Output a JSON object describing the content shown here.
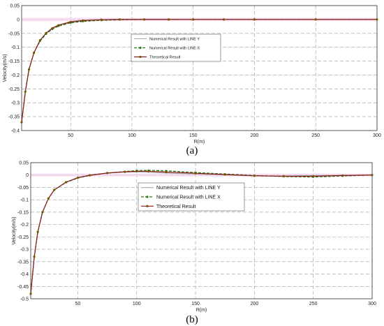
{
  "chart_data": [
    {
      "type": "line",
      "panel_label": "(a)",
      "xlabel": "R(m)",
      "ylabel": "Velocity(m/s)",
      "xlim": [
        10,
        300
      ],
      "ylim": [
        -0.4,
        0.05
      ],
      "xticks": [
        "50",
        "100",
        "150",
        "200",
        "250",
        "300"
      ],
      "yticks": [
        "0.05",
        "0",
        "-0.05",
        "-0.1",
        "-0.15",
        "-0.2",
        "-0.25",
        "-0.3",
        "-0.35",
        "-0.4"
      ],
      "grid": true,
      "legend_position": "center",
      "colors": {
        "line_y": "#a8a8a8",
        "line_x": "#2a7a1a",
        "theory": "#8b1a1a",
        "marker": "#6a5a00"
      },
      "series": [
        {
          "name": "Numerical Result with LINE Y",
          "x": [
            10,
            13,
            16,
            20,
            25,
            30,
            35,
            40,
            50,
            60,
            75,
            90,
            110,
            130,
            150,
            175,
            200,
            250,
            300
          ],
          "y": [
            -0.37,
            -0.26,
            -0.18,
            -0.12,
            -0.075,
            -0.048,
            -0.03,
            -0.02,
            -0.007,
            -0.002,
            0.0,
            0.001,
            0.001,
            0.001,
            0.0,
            0.0,
            0.0,
            0.0,
            0.0
          ]
        },
        {
          "name": "Numerical Result with LINE X",
          "x": [
            10,
            13,
            16,
            20,
            25,
            30,
            35,
            40,
            50,
            60,
            75,
            90,
            110,
            130,
            150,
            175,
            200,
            250,
            300
          ],
          "y": [
            -0.37,
            -0.26,
            -0.18,
            -0.12,
            -0.078,
            -0.052,
            -0.035,
            -0.024,
            -0.012,
            -0.007,
            -0.003,
            -0.001,
            0.0,
            0.0,
            0.0,
            0.0,
            0.0,
            0.0,
            0.0
          ]
        },
        {
          "name": "Theoretical Result",
          "x": [
            10,
            13,
            16,
            20,
            25,
            30,
            35,
            40,
            50,
            60,
            75,
            90,
            110,
            130,
            150,
            175,
            200,
            250,
            300
          ],
          "y": [
            -0.37,
            -0.26,
            -0.18,
            -0.12,
            -0.075,
            -0.049,
            -0.032,
            -0.021,
            -0.009,
            -0.004,
            -0.001,
            0.0,
            0.0,
            0.0,
            0.0,
            0.0,
            0.0,
            0.0,
            0.0
          ]
        }
      ]
    },
    {
      "type": "line",
      "panel_label": "(b)",
      "xlabel": "R(m)",
      "ylabel": "Velocity(m/s)",
      "xlim": [
        10,
        300
      ],
      "ylim": [
        -0.5,
        0.05
      ],
      "xticks": [
        "50",
        "100",
        "150",
        "200",
        "250",
        "300"
      ],
      "yticks": [
        "0.05",
        "0",
        "-0.05",
        "-0.1",
        "-0.15",
        "-0.2",
        "-0.25",
        "-0.3",
        "-0.35",
        "-0.4",
        "-0.45",
        "-0.5"
      ],
      "grid": true,
      "legend_position": "center",
      "colors": {
        "line_y": "#a8a8a8",
        "line_x": "#2a7a1a",
        "theory": "#8b1a1a",
        "marker": "#6a5a00"
      },
      "series": [
        {
          "name": "Numerical Result with LINE Y",
          "x": [
            10,
            13,
            16,
            20,
            25,
            30,
            40,
            50,
            60,
            75,
            90,
            100,
            110,
            125,
            150,
            175,
            200,
            225,
            250,
            275,
            300
          ],
          "y": [
            -0.48,
            -0.33,
            -0.23,
            -0.15,
            -0.095,
            -0.06,
            -0.028,
            -0.01,
            0.0,
            0.008,
            0.012,
            0.012,
            0.011,
            0.008,
            0.004,
            0.0,
            -0.003,
            -0.004,
            -0.002,
            -0.001,
            0.0
          ]
        },
        {
          "name": "Numerical Result with LINE X",
          "x": [
            10,
            13,
            16,
            20,
            25,
            30,
            40,
            50,
            60,
            75,
            90,
            100,
            110,
            125,
            150,
            175,
            200,
            225,
            250,
            275,
            300
          ],
          "y": [
            -0.48,
            -0.33,
            -0.23,
            -0.15,
            -0.095,
            -0.06,
            -0.03,
            -0.012,
            -0.002,
            0.008,
            0.014,
            0.018,
            0.019,
            0.017,
            0.01,
            0.004,
            -0.002,
            -0.006,
            -0.008,
            -0.004,
            0.0
          ]
        },
        {
          "name": "Theoretical Result",
          "x": [
            10,
            13,
            16,
            20,
            25,
            30,
            40,
            50,
            60,
            75,
            90,
            100,
            110,
            125,
            150,
            175,
            200,
            225,
            250,
            275,
            300
          ],
          "y": [
            -0.48,
            -0.33,
            -0.23,
            -0.15,
            -0.095,
            -0.06,
            -0.029,
            -0.011,
            -0.001,
            0.008,
            0.013,
            0.015,
            0.015,
            0.012,
            0.007,
            0.002,
            -0.003,
            -0.005,
            -0.005,
            -0.002,
            0.0
          ]
        }
      ]
    }
  ]
}
